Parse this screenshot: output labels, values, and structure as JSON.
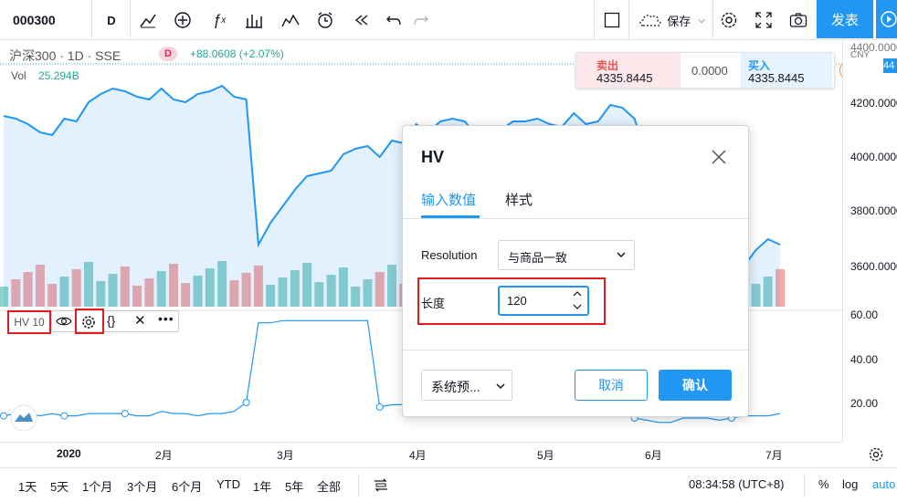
{
  "toolbar": {
    "symbol": "000300",
    "interval": "D",
    "save_label": "保存",
    "publish_label": "发表",
    "icons": [
      "bar-style-icon",
      "indicator-add-icon",
      "fx-icon",
      "templates-icon",
      "compare-icon",
      "alert-icon",
      "replay-icon",
      "undo-icon",
      "redo-icon",
      "layout-icon",
      "cloud-save-icon",
      "settings-icon",
      "fullscreen-icon",
      "snapshot-icon",
      "play-icon"
    ]
  },
  "legend": {
    "title": "沪深300 · 1D · SSE",
    "badge": "D",
    "change": "+88.0608 (+2.07%)",
    "vol_label": "Vol",
    "vol_value": "25.294B"
  },
  "trade": {
    "sell_label": "卖出",
    "sell_price": "4335.8445",
    "spread": "0.0000",
    "buy_label": "买入",
    "buy_price": "4335.8445"
  },
  "price_axis": {
    "currency": "CNY",
    "ticks": [
      "4200.0000",
      "4000.0000",
      "3800.0000",
      "3600.0000"
    ],
    "hv_ticks": [
      "60.00",
      "40.00",
      "20.00"
    ],
    "top_tick": "4400.0000",
    "current_tag": "44"
  },
  "time_axis": {
    "ticks": [
      "2020",
      "2月",
      "3月",
      "4月",
      "5月",
      "6月",
      "7月"
    ]
  },
  "indicator": {
    "label": "HV 10"
  },
  "dialog": {
    "title": "HV",
    "tab_inputs": "输入数值",
    "tab_style": "样式",
    "resolution_label": "Resolution",
    "resolution_value": "与商品一致",
    "length_label": "长度",
    "length_value": "120",
    "preset_label": "系统预...",
    "cancel_label": "取消",
    "ok_label": "确认"
  },
  "bottom": {
    "ranges": [
      "1天",
      "5天",
      "1个月",
      "3个月",
      "6个月",
      "YTD",
      "1年",
      "5年",
      "全部"
    ],
    "time": "08:34:58 (UTC+8)",
    "percent": "%",
    "log": "log",
    "auto": "auto"
  },
  "colors": {
    "accent": "#2196f3",
    "up": "#26a69a",
    "down": "#ef5350",
    "highlight": "#e01c1c"
  },
  "chart_data": {
    "type": "line",
    "price_series": [
      4150,
      4140,
      4120,
      4090,
      4080,
      4140,
      4130,
      4200,
      4230,
      4250,
      4240,
      4220,
      4210,
      4250,
      4210,
      4200,
      4230,
      4240,
      4260,
      4220,
      4210,
      3680,
      3760,
      3820,
      3880,
      3930,
      3940,
      3950,
      4010,
      4030,
      4040,
      4000,
      4060,
      4050,
      4120,
      4090,
      4130,
      4140,
      4130,
      4080,
      4070,
      4100,
      4130,
      4130,
      4140,
      4120,
      4110,
      4160,
      4120,
      4130,
      4190,
      4180,
      4140,
      4010,
      3780,
      3720,
      3700,
      3590,
      3650,
      3570,
      3620,
      3600,
      3660,
      3700,
      3680
    ],
    "hv_series": [
      14,
      15,
      15,
      14,
      15,
      14,
      14,
      15,
      15,
      15,
      15,
      14,
      14,
      16,
      15,
      15,
      14,
      15,
      15,
      16,
      20,
      56,
      56,
      57,
      57,
      57,
      57,
      57,
      57,
      57,
      57,
      18,
      19,
      19,
      19,
      20,
      21,
      33,
      33,
      34,
      40,
      42,
      42,
      38,
      36,
      39,
      32,
      40,
      44,
      44,
      43,
      43,
      13,
      12,
      11,
      11,
      13,
      13,
      13,
      12,
      13,
      14,
      14,
      14,
      15
    ]
  }
}
